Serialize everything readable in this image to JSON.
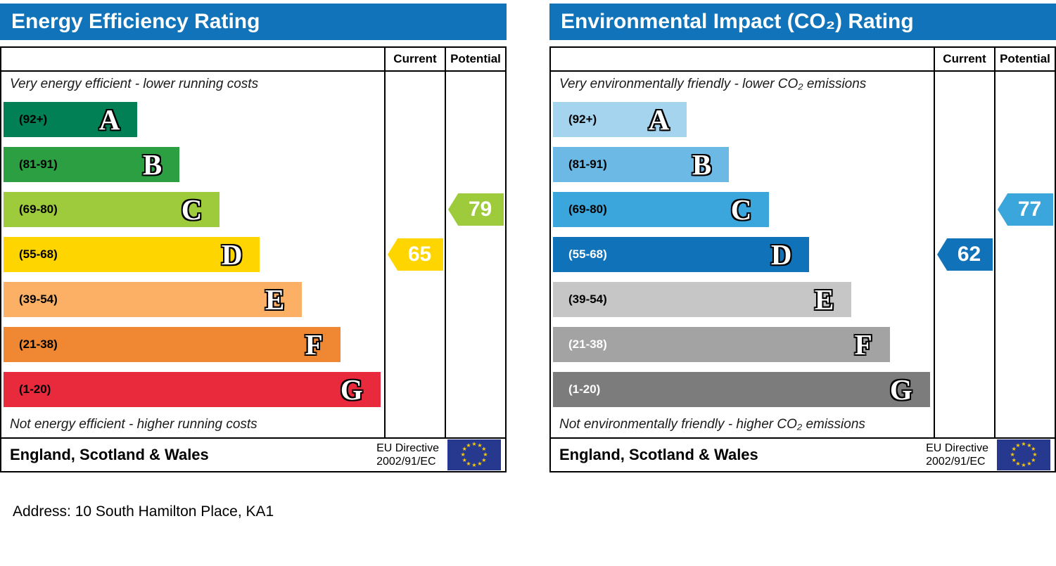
{
  "address_line": "Address: 10 South Hamilton Place, KA1",
  "chart_data": [
    {
      "type": "bar",
      "title": "Energy Efficiency Rating",
      "header_color": "#1173b9",
      "top_note": "Very energy efficient - lower running costs",
      "bottom_note": "Not energy efficient - higher running costs",
      "columns": {
        "current": "Current",
        "potential": "Potential"
      },
      "bands": [
        {
          "letter": "A",
          "range": "(92+)",
          "color": "#008054",
          "range_color": "#000000",
          "width_pct": 35
        },
        {
          "letter": "B",
          "range": "(81-91)",
          "color": "#2c9f42",
          "range_color": "#000000",
          "width_pct": 46
        },
        {
          "letter": "C",
          "range": "(69-80)",
          "color": "#9ecb3b",
          "range_color": "#000000",
          "width_pct": 56.5
        },
        {
          "letter": "D",
          "range": "(55-68)",
          "color": "#ffd500",
          "range_color": "#000000",
          "width_pct": 67
        },
        {
          "letter": "E",
          "range": "(39-54)",
          "color": "#fbb066",
          "range_color": "#000000",
          "width_pct": 78
        },
        {
          "letter": "F",
          "range": "(21-38)",
          "color": "#ef8733",
          "range_color": "#000000",
          "width_pct": 88
        },
        {
          "letter": "G",
          "range": "(1-20)",
          "color": "#e9293c",
          "range_color": "#000000",
          "width_pct": 98.5
        }
      ],
      "current": {
        "value": 65,
        "band": "D",
        "band_index": 3,
        "color": "#ffd500"
      },
      "potential": {
        "value": 79,
        "band": "C",
        "band_index": 2,
        "color": "#9ecb3b"
      },
      "footer": {
        "region": "England, Scotland & Wales",
        "directive_line1": "EU Directive",
        "directive_line2": "2002/91/EC"
      }
    },
    {
      "type": "bar",
      "title": "Environmental Impact (CO₂) Rating",
      "header_color": "#1173b9",
      "top_note": "Very environmentally friendly - lower CO₂ emissions",
      "bottom_note": "Not environmentally friendly - higher CO₂ emissions",
      "columns": {
        "current": "Current",
        "potential": "Potential"
      },
      "bands": [
        {
          "letter": "A",
          "range": "(92+)",
          "color": "#a4d4ee",
          "range_color": "#000000",
          "width_pct": 35
        },
        {
          "letter": "B",
          "range": "(81-91)",
          "color": "#6cb9e5",
          "range_color": "#000000",
          "width_pct": 46
        },
        {
          "letter": "C",
          "range": "(69-80)",
          "color": "#3ba6dc",
          "range_color": "#000000",
          "width_pct": 56.5
        },
        {
          "letter": "D",
          "range": "(55-68)",
          "color": "#1073ba",
          "range_color": "#ffffff",
          "width_pct": 67
        },
        {
          "letter": "E",
          "range": "(39-54)",
          "color": "#c5c6c5",
          "range_color": "#000000",
          "width_pct": 78
        },
        {
          "letter": "F",
          "range": "(21-38)",
          "color": "#a3a3a3",
          "range_color": "#ffffff",
          "width_pct": 88
        },
        {
          "letter": "G",
          "range": "(1-20)",
          "color": "#7c7c7c",
          "range_color": "#ffffff",
          "width_pct": 98.5
        }
      ],
      "current": {
        "value": 62,
        "band": "D",
        "band_index": 3,
        "color": "#1073ba"
      },
      "potential": {
        "value": 77,
        "band": "C",
        "band_index": 2,
        "color": "#3ba6dc"
      },
      "footer": {
        "region": "England, Scotland & Wales",
        "directive_line1": "EU Directive",
        "directive_line2": "2002/91/EC"
      }
    }
  ]
}
